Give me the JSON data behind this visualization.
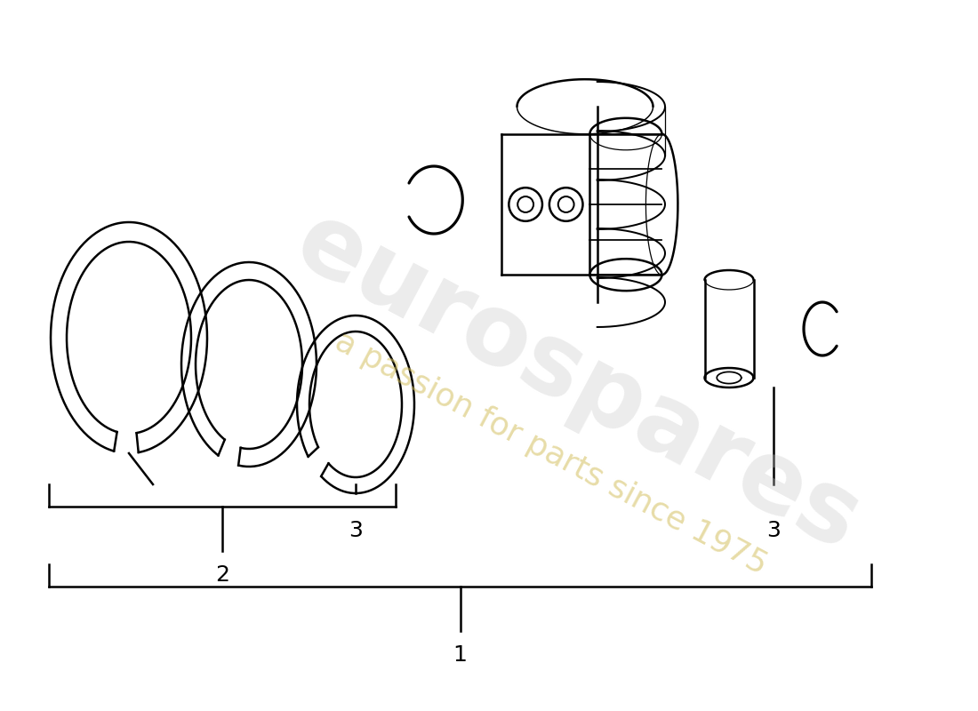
{
  "bg_color": "#ffffff",
  "line_color": "#000000",
  "lw": 1.8,
  "watermark1": "eurospares",
  "watermark2": "a passion for parts since 1975",
  "labels": {
    "1": "1",
    "2": "2",
    "3": "3"
  }
}
